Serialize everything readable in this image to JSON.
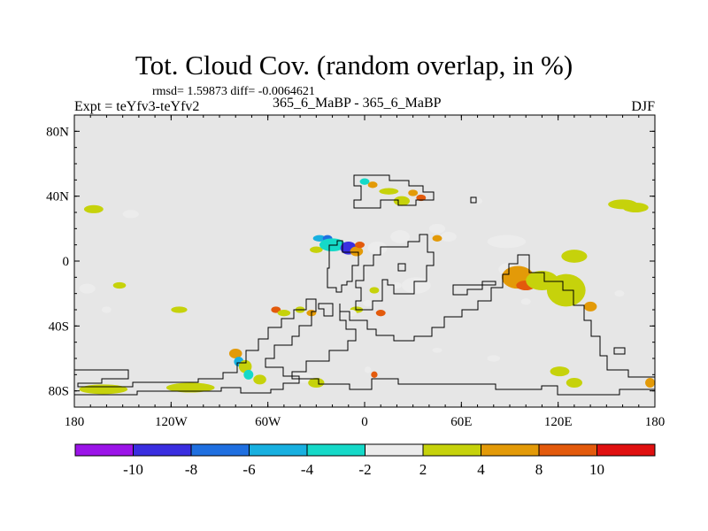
{
  "header": {
    "title": "Tot. Cloud Cov. (random overlap, in %)",
    "stats": "rmsd= 1.59873  diff= -0.0064621",
    "experiment": "Expt = teYfv3-teYfv2",
    "cases": "365_6_MaBP - 365_6_MaBP",
    "season": "DJF"
  },
  "chart_data": {
    "type": "heatmap",
    "title": "Tot. Cloud Cov. (random overlap, in %)",
    "xlabel": "",
    "ylabel": "",
    "xlim": [
      -180,
      180
    ],
    "ylim": [
      -90,
      90
    ],
    "xticks": [
      {
        "value": -180,
        "label": "180"
      },
      {
        "value": -120,
        "label": "120W"
      },
      {
        "value": -60,
        "label": "60W"
      },
      {
        "value": 0,
        "label": "0"
      },
      {
        "value": 60,
        "label": "60E"
      },
      {
        "value": 120,
        "label": "120E"
      },
      {
        "value": 180,
        "label": "180"
      }
    ],
    "yticks": [
      {
        "value": 80,
        "label": "80N"
      },
      {
        "value": 40,
        "label": "40N"
      },
      {
        "value": 0,
        "label": "0"
      },
      {
        "value": -40,
        "label": "40S"
      },
      {
        "value": -80,
        "label": "80S"
      }
    ],
    "background_color": "#e6e6e6",
    "colorbar": {
      "bounds": [
        -10,
        -8,
        -6,
        -4,
        -2,
        2,
        4,
        8,
        10
      ],
      "labels": [
        "-10",
        "-8",
        "-6",
        "-4",
        "-2",
        "2",
        "4",
        "8",
        "10"
      ],
      "colors": [
        "#9b14e8",
        "#3a2ee0",
        "#1f6fe0",
        "#18b0e0",
        "#15d9c8",
        "#ececec",
        "#c6d20b",
        "#e39a08",
        "#e35a0c",
        "#e01010"
      ]
    },
    "anomaly_patches": [
      {
        "lon": -168,
        "lat": 32,
        "rx": 6,
        "ry": 2.5,
        "level": 2
      },
      {
        "lon": -145,
        "lat": 29,
        "rx": 5,
        "ry": 2.5,
        "level": -2
      },
      {
        "lon": -172,
        "lat": -17,
        "rx": 5,
        "ry": 3,
        "level": -2
      },
      {
        "lon": -152,
        "lat": -15,
        "rx": 4,
        "ry": 2,
        "level": 2
      },
      {
        "lon": -160,
        "lat": -30,
        "rx": 3,
        "ry": 2,
        "level": -2
      },
      {
        "lon": -115,
        "lat": -30,
        "rx": 5,
        "ry": 2,
        "level": 2
      },
      {
        "lon": -162,
        "lat": -79,
        "rx": 15,
        "ry": 3,
        "level": 2
      },
      {
        "lon": -108,
        "lat": -78,
        "rx": 15,
        "ry": 3,
        "level": 2
      },
      {
        "lon": -80,
        "lat": -57,
        "rx": 4,
        "ry": 3,
        "level": 4
      },
      {
        "lon": -78,
        "lat": -62,
        "rx": 3,
        "ry": 3,
        "level": -6
      },
      {
        "lon": -74,
        "lat": -65,
        "rx": 4,
        "ry": 4,
        "level": 2
      },
      {
        "lon": -72,
        "lat": -70,
        "rx": 3,
        "ry": 3,
        "level": -4
      },
      {
        "lon": -65,
        "lat": -73,
        "rx": 4,
        "ry": 3,
        "level": 2
      },
      {
        "lon": -55,
        "lat": -30,
        "rx": 3,
        "ry": 2,
        "level": 8
      },
      {
        "lon": -50,
        "lat": -32,
        "rx": 4,
        "ry": 2,
        "level": 2
      },
      {
        "lon": -38,
        "lat": -72,
        "rx": 6,
        "ry": 3,
        "level": -2
      },
      {
        "lon": -30,
        "lat": -75,
        "rx": 5,
        "ry": 3,
        "level": 2
      },
      {
        "lon": -40,
        "lat": -30,
        "rx": 3,
        "ry": 2,
        "level": 2
      },
      {
        "lon": -33,
        "lat": -32,
        "rx": 3,
        "ry": 2,
        "level": 4
      },
      {
        "lon": -30,
        "lat": 7,
        "rx": 4,
        "ry": 2,
        "level": 2
      },
      {
        "lon": -28,
        "lat": 14,
        "rx": 4,
        "ry": 2,
        "level": -6
      },
      {
        "lon": -23,
        "lat": 14,
        "rx": 3,
        "ry": 2,
        "level": -8
      },
      {
        "lon": -20,
        "lat": 10,
        "rx": 8,
        "ry": 4,
        "level": -4
      },
      {
        "lon": -10,
        "lat": 8,
        "rx": 5,
        "ry": 4,
        "level": -10
      },
      {
        "lon": -5,
        "lat": 6,
        "rx": 4,
        "ry": 3,
        "level": 4
      },
      {
        "lon": -3,
        "lat": 10,
        "rx": 3,
        "ry": 2,
        "level": 8
      },
      {
        "lon": 8,
        "lat": 8,
        "rx": 6,
        "ry": 4,
        "level": -2
      },
      {
        "lon": 22,
        "lat": 15,
        "rx": 6,
        "ry": 4,
        "level": -2
      },
      {
        "lon": 32,
        "lat": -15,
        "rx": 9,
        "ry": 5,
        "level": -2
      },
      {
        "lon": 20,
        "lat": -15,
        "rx": 3,
        "ry": 2,
        "level": -2
      },
      {
        "lon": 6,
        "lat": -18,
        "rx": 3,
        "ry": 2,
        "level": 2
      },
      {
        "lon": 2,
        "lat": -26,
        "rx": 3,
        "ry": 2,
        "level": -2
      },
      {
        "lon": -5,
        "lat": -30,
        "rx": 4,
        "ry": 2,
        "level": 2
      },
      {
        "lon": -8,
        "lat": -32,
        "rx": 3,
        "ry": 2,
        "level": -2
      },
      {
        "lon": 10,
        "lat": -32,
        "rx": 3,
        "ry": 2,
        "level": 8
      },
      {
        "lon": 2,
        "lat": -67,
        "rx": 2,
        "ry": 2,
        "level": -2
      },
      {
        "lon": 6,
        "lat": -70,
        "rx": 2,
        "ry": 2,
        "level": 8
      },
      {
        "lon": 0,
        "lat": 49,
        "rx": 3,
        "ry": 2,
        "level": -4
      },
      {
        "lon": 5,
        "lat": 47,
        "rx": 3,
        "ry": 2,
        "level": 4
      },
      {
        "lon": 15,
        "lat": 43,
        "rx": 6,
        "ry": 2,
        "level": 2
      },
      {
        "lon": 23,
        "lat": 37,
        "rx": 5,
        "ry": 3,
        "level": 2
      },
      {
        "lon": 30,
        "lat": 42,
        "rx": 3,
        "ry": 2,
        "level": 4
      },
      {
        "lon": 35,
        "lat": 39,
        "rx": 3,
        "ry": 2,
        "level": 8
      },
      {
        "lon": 70,
        "lat": 37,
        "rx": 3,
        "ry": 2,
        "level": -2
      },
      {
        "lon": 45,
        "lat": 20,
        "rx": 5,
        "ry": 3,
        "level": -2
      },
      {
        "lon": 52,
        "lat": 15,
        "rx": 5,
        "ry": 3,
        "level": -2
      },
      {
        "lon": 45,
        "lat": 14,
        "rx": 3,
        "ry": 2,
        "level": 4
      },
      {
        "lon": 88,
        "lat": 12,
        "rx": 12,
        "ry": 4,
        "level": -2
      },
      {
        "lon": 90,
        "lat": -5,
        "rx": 7,
        "ry": 4,
        "level": -2
      },
      {
        "lon": 95,
        "lat": -10,
        "rx": 10,
        "ry": 7,
        "level": 4
      },
      {
        "lon": 100,
        "lat": -15,
        "rx": 6,
        "ry": 3,
        "level": 8
      },
      {
        "lon": 110,
        "lat": -12,
        "rx": 10,
        "ry": 6,
        "level": 2
      },
      {
        "lon": 125,
        "lat": -18,
        "rx": 12,
        "ry": 10,
        "level": 2
      },
      {
        "lon": 100,
        "lat": -25,
        "rx": 3,
        "ry": 2,
        "level": -2
      },
      {
        "lon": 130,
        "lat": 3,
        "rx": 8,
        "ry": 4,
        "level": 2
      },
      {
        "lon": 140,
        "lat": -28,
        "rx": 4,
        "ry": 3,
        "level": 4
      },
      {
        "lon": 158,
        "lat": -20,
        "rx": 3,
        "ry": 2,
        "level": -2
      },
      {
        "lon": 160,
        "lat": 35,
        "rx": 9,
        "ry": 3,
        "level": 2
      },
      {
        "lon": 168,
        "lat": 33,
        "rx": 8,
        "ry": 3,
        "level": 2
      },
      {
        "lon": 80,
        "lat": -60,
        "rx": 4,
        "ry": 2,
        "level": -2
      },
      {
        "lon": 45,
        "lat": -55,
        "rx": 3,
        "ry": 1.5,
        "level": -2
      },
      {
        "lon": 121,
        "lat": -68,
        "rx": 6,
        "ry": 3,
        "level": 2
      },
      {
        "lon": 130,
        "lat": -75,
        "rx": 5,
        "ry": 3,
        "level": 2
      },
      {
        "lon": 177,
        "lat": -75,
        "rx": 3,
        "ry": 3,
        "level": 4
      }
    ]
  }
}
